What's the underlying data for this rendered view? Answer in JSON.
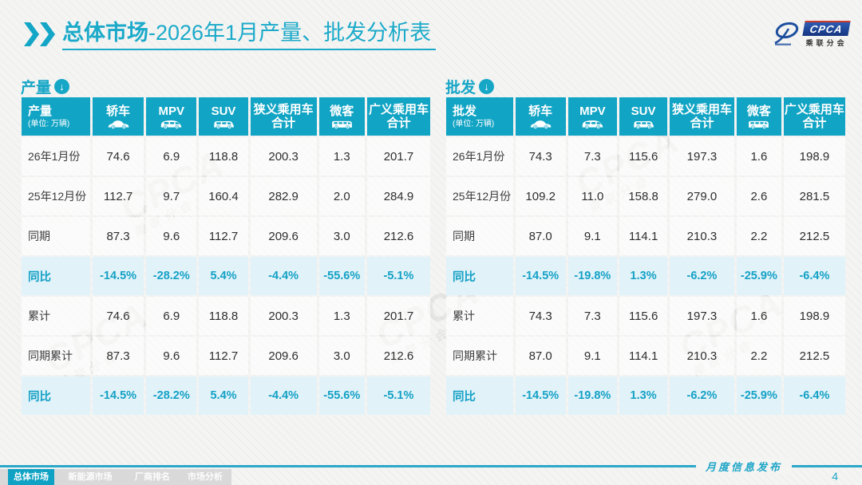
{
  "title": {
    "highlight": "总体市场",
    "rest": "-2026年1月产量、批发分析表"
  },
  "logo": {
    "acronym": "CPCA",
    "subtitle": "乘联分会"
  },
  "watermark": {
    "text": "CPCA",
    "subtext": "乘联分会"
  },
  "colors": {
    "accent_teal": "#12a4c4",
    "title_teal": "#1baac9",
    "highlight_row_bg": "#e1f2f9",
    "footer_line": "#2aa8c9",
    "inactive_tab_bg": "#d9d9d9",
    "page_bg": "#f4f4f3"
  },
  "tables": [
    {
      "section_label": "产量",
      "corner_title": "产量",
      "unit": "(单位: 万辆)",
      "columns": [
        {
          "label": "轿车",
          "icon": "sedan-icon"
        },
        {
          "label": "MPV",
          "icon": "mpv-icon"
        },
        {
          "label": "SUV",
          "icon": "suv-icon"
        },
        {
          "label": "狭义乘用车",
          "label2": "合计"
        },
        {
          "label": "微客",
          "icon": "minibus-icon"
        },
        {
          "label": "广义乘用车",
          "label2": "合计"
        }
      ],
      "rows": [
        {
          "label": "26年1月份",
          "values": [
            "74.6",
            "6.9",
            "118.8",
            "200.3",
            "1.3",
            "201.7"
          ],
          "highlight": false
        },
        {
          "label": "25年12月份",
          "values": [
            "112.7",
            "9.7",
            "160.4",
            "282.9",
            "2.0",
            "284.9"
          ],
          "highlight": false
        },
        {
          "label": "同期",
          "values": [
            "87.3",
            "9.6",
            "112.7",
            "209.6",
            "3.0",
            "212.6"
          ],
          "highlight": false
        },
        {
          "label": "同比",
          "values": [
            "-14.5%",
            "-28.2%",
            "5.4%",
            "-4.4%",
            "-55.6%",
            "-5.1%"
          ],
          "highlight": true
        },
        {
          "label": "累计",
          "values": [
            "74.6",
            "6.9",
            "118.8",
            "200.3",
            "1.3",
            "201.7"
          ],
          "highlight": false
        },
        {
          "label": "同期累计",
          "values": [
            "87.3",
            "9.6",
            "112.7",
            "209.6",
            "3.0",
            "212.6"
          ],
          "highlight": false
        },
        {
          "label": "同比",
          "values": [
            "-14.5%",
            "-28.2%",
            "5.4%",
            "-4.4%",
            "-55.6%",
            "-5.1%"
          ],
          "highlight": true
        }
      ]
    },
    {
      "section_label": "批发",
      "corner_title": "批发",
      "unit": "(单位: 万辆)",
      "columns": [
        {
          "label": "轿车",
          "icon": "sedan-icon"
        },
        {
          "label": "MPV",
          "icon": "mpv-icon"
        },
        {
          "label": "SUV",
          "icon": "suv-icon"
        },
        {
          "label": "狭义乘用车",
          "label2": "合计"
        },
        {
          "label": "微客",
          "icon": "minibus-icon"
        },
        {
          "label": "广义乘用车",
          "label2": "合计"
        }
      ],
      "rows": [
        {
          "label": "26年1月份",
          "values": [
            "74.3",
            "7.3",
            "115.6",
            "197.3",
            "1.6",
            "198.9"
          ],
          "highlight": false
        },
        {
          "label": "25年12月份",
          "values": [
            "109.2",
            "11.0",
            "158.8",
            "279.0",
            "2.6",
            "281.5"
          ],
          "highlight": false
        },
        {
          "label": "同期",
          "values": [
            "87.0",
            "9.1",
            "114.1",
            "210.3",
            "2.2",
            "212.5"
          ],
          "highlight": false
        },
        {
          "label": "同比",
          "values": [
            "-14.5%",
            "-19.8%",
            "1.3%",
            "-6.2%",
            "-25.9%",
            "-6.4%"
          ],
          "highlight": true
        },
        {
          "label": "累计",
          "values": [
            "74.3",
            "7.3",
            "115.6",
            "197.3",
            "1.6",
            "198.9"
          ],
          "highlight": false
        },
        {
          "label": "同期累计",
          "values": [
            "87.0",
            "9.1",
            "114.1",
            "210.3",
            "2.2",
            "212.5"
          ],
          "highlight": false
        },
        {
          "label": "同比",
          "values": [
            "-14.5%",
            "-19.8%",
            "1.3%",
            "-6.2%",
            "-25.9%",
            "-6.4%"
          ],
          "highlight": true
        }
      ]
    }
  ],
  "footer": {
    "publication_label": "月度信息发布",
    "page_number": "4"
  },
  "tabs": [
    {
      "label": "总体市场",
      "active": true
    },
    {
      "label": "新能源市场",
      "active": false
    },
    {
      "label": "厂商排名",
      "active": false
    },
    {
      "label": "市场分析",
      "active": false
    }
  ]
}
